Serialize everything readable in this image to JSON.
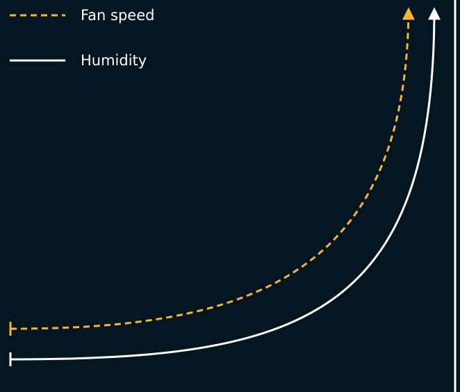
{
  "colors": {
    "background": "#021520",
    "fan_speed": "#f9b52b",
    "humidity": "#ffffff"
  },
  "legend": {
    "items": [
      {
        "label": "Fan speed",
        "style": "dashed",
        "color": "#f9b52b"
      },
      {
        "label": "Humidity",
        "style": "solid",
        "color": "#ffffff"
      }
    ]
  },
  "curves": {
    "fan_speed": {
      "label": "Fan speed",
      "line_style": "dashed",
      "start_cap": "bar",
      "end_cap": "arrow"
    },
    "humidity": {
      "label": "Humidity",
      "line_style": "solid",
      "start_cap": "bar",
      "end_cap": "arrow"
    }
  }
}
